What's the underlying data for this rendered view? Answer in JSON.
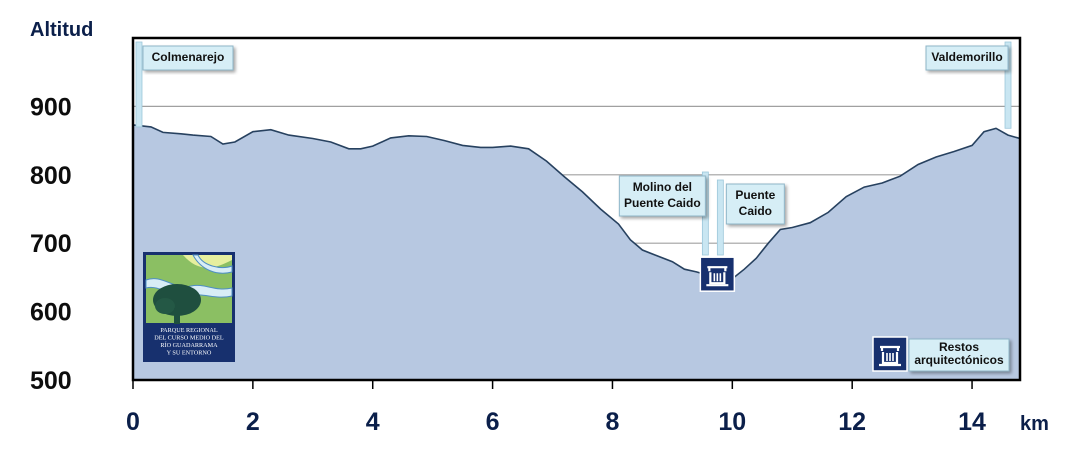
{
  "chart_data": {
    "type": "area",
    "ylabel": "Altitud",
    "xlabel": "km",
    "xlim": [
      0,
      14.8
    ],
    "ylim": [
      500,
      1000
    ],
    "x_ticks": [
      0,
      2,
      4,
      6,
      8,
      10,
      12,
      14
    ],
    "y_ticks": [
      500,
      600,
      700,
      800,
      900
    ],
    "grid": "horizontal",
    "colors": {
      "fill": "#b7c8e1",
      "line": "#27415f",
      "frame": "#000000",
      "grid": "#a0a0a0",
      "label_bg": "#d6eef6",
      "pole": "#c9e6f2",
      "icon": "#17306e"
    },
    "series": [
      {
        "x": [
          0,
          0.3,
          0.5,
          0.8,
          1,
          1.3,
          1.5,
          1.7,
          2,
          2.3,
          2.6,
          3,
          3.3,
          3.6,
          3.8,
          4,
          4.3,
          4.6,
          4.9,
          5.2,
          5.5,
          5.8,
          6,
          6.3,
          6.6,
          6.9,
          7.2,
          7.5,
          7.8,
          8.1,
          8.3,
          8.5,
          8.7,
          9,
          9.2,
          9.4,
          9.6,
          9.8,
          10,
          10.2,
          10.4,
          10.6,
          10.8,
          11,
          11.3,
          11.6,
          11.9,
          12.2,
          12.5,
          12.8,
          13.1,
          13.4,
          13.7,
          14,
          14.2,
          14.4,
          14.6,
          14.8
        ],
        "y": [
          873,
          870,
          862,
          860,
          858,
          856,
          845,
          848,
          863,
          866,
          858,
          853,
          848,
          838,
          838,
          842,
          854,
          857,
          856,
          850,
          843,
          840,
          840,
          842,
          838,
          820,
          797,
          775,
          750,
          728,
          705,
          690,
          683,
          673,
          662,
          658,
          653,
          652,
          648,
          662,
          678,
          700,
          720,
          723,
          730,
          745,
          768,
          782,
          788,
          798,
          815,
          826,
          834,
          843,
          863,
          868,
          858,
          853
        ]
      }
    ],
    "annotations": [
      {
        "x": 0.1,
        "text": [
          "Colmenarejo"
        ]
      },
      {
        "x": 14.6,
        "text": [
          "Valdemorillo"
        ]
      },
      {
        "x": 9.55,
        "text": [
          "Molino del",
          "Puente Caido"
        ]
      },
      {
        "x": 9.8,
        "text": [
          "Puente",
          "Caido"
        ]
      }
    ],
    "point_markers": [
      {
        "x": 9.75,
        "y": 643,
        "icon": "ruins-icon"
      }
    ],
    "legend": {
      "position": "bottom-right",
      "icon": "ruins-icon",
      "text": [
        "Restos",
        "arquitectónicos"
      ]
    },
    "logo": {
      "position": "bottom-left",
      "text": [
        "PARQUE REGIONAL",
        "DEL CURSO MEDIO DEL",
        "RÍO GUADARRAMA",
        "Y SU ENTORNO"
      ]
    }
  }
}
